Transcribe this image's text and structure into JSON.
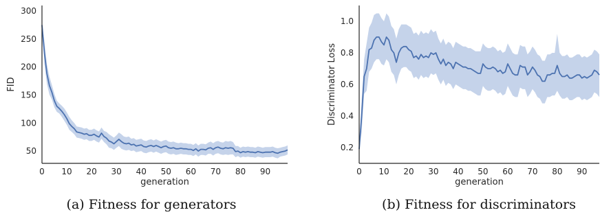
{
  "chart_data": [
    {
      "type": "line",
      "caption": "(a) Fitness for generators",
      "xlabel": "generation",
      "ylabel": "FID",
      "xlim": [
        0,
        99
      ],
      "ylim": [
        28,
        310
      ],
      "xticks": [
        0,
        10,
        20,
        30,
        40,
        50,
        60,
        70,
        80,
        90
      ],
      "yticks": [
        50,
        100,
        150,
        200,
        250,
        300
      ],
      "grid": false,
      "color": "#4c72b0",
      "band_color": "#c5d3ea",
      "series": [
        {
          "x": [
            0,
            1,
            2,
            3,
            4,
            5,
            6,
            7,
            8,
            9,
            10,
            11,
            12,
            13,
            14,
            15,
            16,
            17,
            18,
            19,
            20,
            21,
            22,
            23,
            24,
            25,
            26,
            27,
            28,
            29,
            30,
            31,
            32,
            33,
            34,
            35,
            36,
            37,
            38,
            39,
            40,
            41,
            42,
            43,
            44,
            45,
            46,
            47,
            48,
            49,
            50,
            51,
            52,
            53,
            54,
            55,
            56,
            57,
            58,
            59,
            60,
            61,
            62,
            63,
            64,
            65,
            66,
            67,
            68,
            69,
            70,
            71,
            72,
            73,
            74,
            75,
            76,
            77,
            78,
            79,
            80,
            81,
            82,
            83,
            84,
            85,
            86,
            87,
            88,
            89,
            90,
            91,
            92,
            93,
            94,
            95,
            96,
            97,
            98,
            99
          ],
          "y": [
            275,
            225,
            188,
            167,
            155,
            140,
            130,
            126,
            121,
            115,
            108,
            99,
            94,
            90,
            84,
            83,
            82,
            80,
            81,
            78,
            78,
            80,
            77,
            75,
            82,
            76,
            73,
            68,
            66,
            63,
            67,
            71,
            67,
            64,
            63,
            64,
            61,
            62,
            59,
            60,
            61,
            58,
            57,
            59,
            60,
            58,
            60,
            58,
            56,
            58,
            59,
            56,
            55,
            56,
            54,
            54,
            55,
            54,
            54,
            53,
            53,
            51,
            54,
            50,
            53,
            53,
            52,
            55,
            56,
            53,
            56,
            57,
            55,
            54,
            56,
            55,
            56,
            55,
            49,
            50,
            47,
            49,
            48,
            49,
            48,
            48,
            47,
            49,
            48,
            47,
            48,
            48,
            48,
            49,
            47,
            46,
            48,
            49,
            50,
            52
          ],
          "upper": [
            278,
            245,
            205,
            183,
            168,
            152,
            140,
            135,
            131,
            126,
            119,
            111,
            105,
            100,
            94,
            93,
            92,
            90,
            91,
            88,
            88,
            90,
            87,
            85,
            92,
            86,
            84,
            80,
            77,
            74,
            78,
            83,
            80,
            76,
            75,
            76,
            72,
            73,
            70,
            71,
            72,
            69,
            68,
            70,
            71,
            69,
            71,
            69,
            67,
            69,
            70,
            67,
            66,
            67,
            65,
            64,
            65,
            64,
            64,
            63,
            63,
            61,
            64,
            60,
            63,
            63,
            62,
            65,
            67,
            64,
            67,
            68,
            66,
            65,
            68,
            67,
            68,
            66,
            59,
            59,
            56,
            58,
            57,
            58,
            57,
            57,
            56,
            58,
            57,
            56,
            57,
            57,
            57,
            58,
            56,
            55,
            56,
            57,
            58,
            60
          ],
          "lower": [
            272,
            205,
            170,
            151,
            142,
            128,
            120,
            117,
            111,
            104,
            97,
            88,
            84,
            80,
            74,
            73,
            72,
            70,
            71,
            68,
            68,
            70,
            67,
            65,
            72,
            66,
            62,
            56,
            55,
            52,
            56,
            59,
            54,
            52,
            51,
            52,
            50,
            51,
            48,
            49,
            50,
            47,
            46,
            48,
            49,
            47,
            49,
            47,
            45,
            47,
            48,
            45,
            44,
            45,
            43,
            44,
            45,
            44,
            44,
            43,
            43,
            41,
            44,
            40,
            43,
            43,
            42,
            45,
            45,
            42,
            45,
            46,
            44,
            43,
            44,
            43,
            44,
            44,
            39,
            41,
            38,
            40,
            39,
            40,
            39,
            39,
            38,
            40,
            39,
            38,
            39,
            39,
            39,
            40,
            38,
            37,
            40,
            41,
            42,
            44
          ]
        }
      ]
    },
    {
      "type": "line",
      "caption": "(b) Fitness for discriminators",
      "xlabel": "generation",
      "ylabel": "Discriminator Loss",
      "xlim": [
        0,
        97
      ],
      "ylim": [
        0.1,
        1.1
      ],
      "xticks": [
        0,
        10,
        20,
        30,
        40,
        50,
        60,
        70,
        80,
        90
      ],
      "yticks": [
        0.2,
        0.4,
        0.6,
        0.8,
        1.0
      ],
      "grid": false,
      "color": "#4c72b0",
      "band_color": "#c5d3ea",
      "series": [
        {
          "x": [
            0,
            1,
            2,
            3,
            4,
            5,
            6,
            7,
            8,
            9,
            10,
            11,
            12,
            13,
            14,
            15,
            16,
            17,
            18,
            19,
            20,
            21,
            22,
            23,
            24,
            25,
            26,
            27,
            28,
            29,
            30,
            31,
            32,
            33,
            34,
            35,
            36,
            37,
            38,
            39,
            40,
            41,
            42,
            43,
            44,
            45,
            46,
            47,
            48,
            49,
            50,
            51,
            52,
            53,
            54,
            55,
            56,
            57,
            58,
            59,
            60,
            61,
            62,
            63,
            64,
            65,
            66,
            67,
            68,
            69,
            70,
            71,
            72,
            73,
            74,
            75,
            76,
            77,
            78,
            79,
            80,
            81,
            82,
            83,
            84,
            85,
            86,
            87,
            88,
            89,
            90,
            91,
            92,
            93,
            94,
            95,
            96,
            97
          ],
          "y": [
            0.19,
            0.4,
            0.65,
            0.7,
            0.82,
            0.83,
            0.88,
            0.9,
            0.9,
            0.87,
            0.85,
            0.9,
            0.88,
            0.82,
            0.8,
            0.74,
            0.8,
            0.83,
            0.84,
            0.84,
            0.82,
            0.81,
            0.77,
            0.78,
            0.76,
            0.79,
            0.77,
            0.78,
            0.77,
            0.8,
            0.79,
            0.8,
            0.76,
            0.73,
            0.76,
            0.72,
            0.74,
            0.73,
            0.7,
            0.74,
            0.73,
            0.72,
            0.71,
            0.71,
            0.7,
            0.7,
            0.69,
            0.68,
            0.67,
            0.67,
            0.73,
            0.71,
            0.7,
            0.7,
            0.71,
            0.7,
            0.68,
            0.69,
            0.67,
            0.68,
            0.73,
            0.7,
            0.67,
            0.66,
            0.66,
            0.72,
            0.71,
            0.71,
            0.66,
            0.68,
            0.71,
            0.69,
            0.66,
            0.65,
            0.62,
            0.62,
            0.66,
            0.66,
            0.67,
            0.67,
            0.72,
            0.67,
            0.65,
            0.65,
            0.66,
            0.64,
            0.64,
            0.65,
            0.66,
            0.66,
            0.64,
            0.65,
            0.64,
            0.65,
            0.66,
            0.69,
            0.68,
            0.66
          ],
          "upper": [
            0.19,
            0.5,
            0.76,
            0.86,
            0.96,
            0.99,
            1.04,
            1.05,
            1.05,
            1.02,
            1.0,
            1.05,
            1.03,
            0.97,
            0.95,
            0.89,
            0.95,
            0.98,
            0.98,
            0.98,
            0.97,
            0.96,
            0.92,
            0.93,
            0.91,
            0.94,
            0.92,
            0.93,
            0.92,
            0.95,
            0.93,
            0.94,
            0.89,
            0.86,
            0.89,
            0.85,
            0.87,
            0.86,
            0.83,
            0.87,
            0.86,
            0.85,
            0.84,
            0.84,
            0.83,
            0.83,
            0.82,
            0.81,
            0.81,
            0.81,
            0.86,
            0.84,
            0.83,
            0.83,
            0.84,
            0.83,
            0.81,
            0.82,
            0.8,
            0.81,
            0.86,
            0.83,
            0.8,
            0.79,
            0.79,
            0.85,
            0.84,
            0.84,
            0.79,
            0.81,
            0.84,
            0.82,
            0.79,
            0.78,
            0.75,
            0.75,
            0.79,
            0.79,
            0.8,
            0.8,
            0.92,
            0.8,
            0.78,
            0.78,
            0.79,
            0.77,
            0.77,
            0.78,
            0.79,
            0.79,
            0.77,
            0.78,
            0.77,
            0.78,
            0.79,
            0.82,
            0.81,
            0.79
          ],
          "lower": [
            0.19,
            0.3,
            0.54,
            0.56,
            0.68,
            0.7,
            0.74,
            0.76,
            0.76,
            0.73,
            0.72,
            0.76,
            0.74,
            0.68,
            0.66,
            0.6,
            0.66,
            0.7,
            0.71,
            0.71,
            0.69,
            0.68,
            0.64,
            0.65,
            0.63,
            0.66,
            0.64,
            0.65,
            0.64,
            0.67,
            0.66,
            0.67,
            0.63,
            0.6,
            0.63,
            0.59,
            0.61,
            0.6,
            0.57,
            0.6,
            0.59,
            0.58,
            0.57,
            0.57,
            0.56,
            0.56,
            0.55,
            0.54,
            0.53,
            0.53,
            0.59,
            0.57,
            0.56,
            0.56,
            0.57,
            0.56,
            0.54,
            0.55,
            0.53,
            0.54,
            0.59,
            0.56,
            0.53,
            0.52,
            0.52,
            0.58,
            0.57,
            0.57,
            0.52,
            0.54,
            0.57,
            0.55,
            0.52,
            0.51,
            0.48,
            0.48,
            0.52,
            0.52,
            0.53,
            0.53,
            0.56,
            0.53,
            0.51,
            0.51,
            0.52,
            0.5,
            0.5,
            0.51,
            0.52,
            0.52,
            0.5,
            0.51,
            0.5,
            0.51,
            0.52,
            0.55,
            0.54,
            0.52
          ]
        }
      ]
    }
  ]
}
